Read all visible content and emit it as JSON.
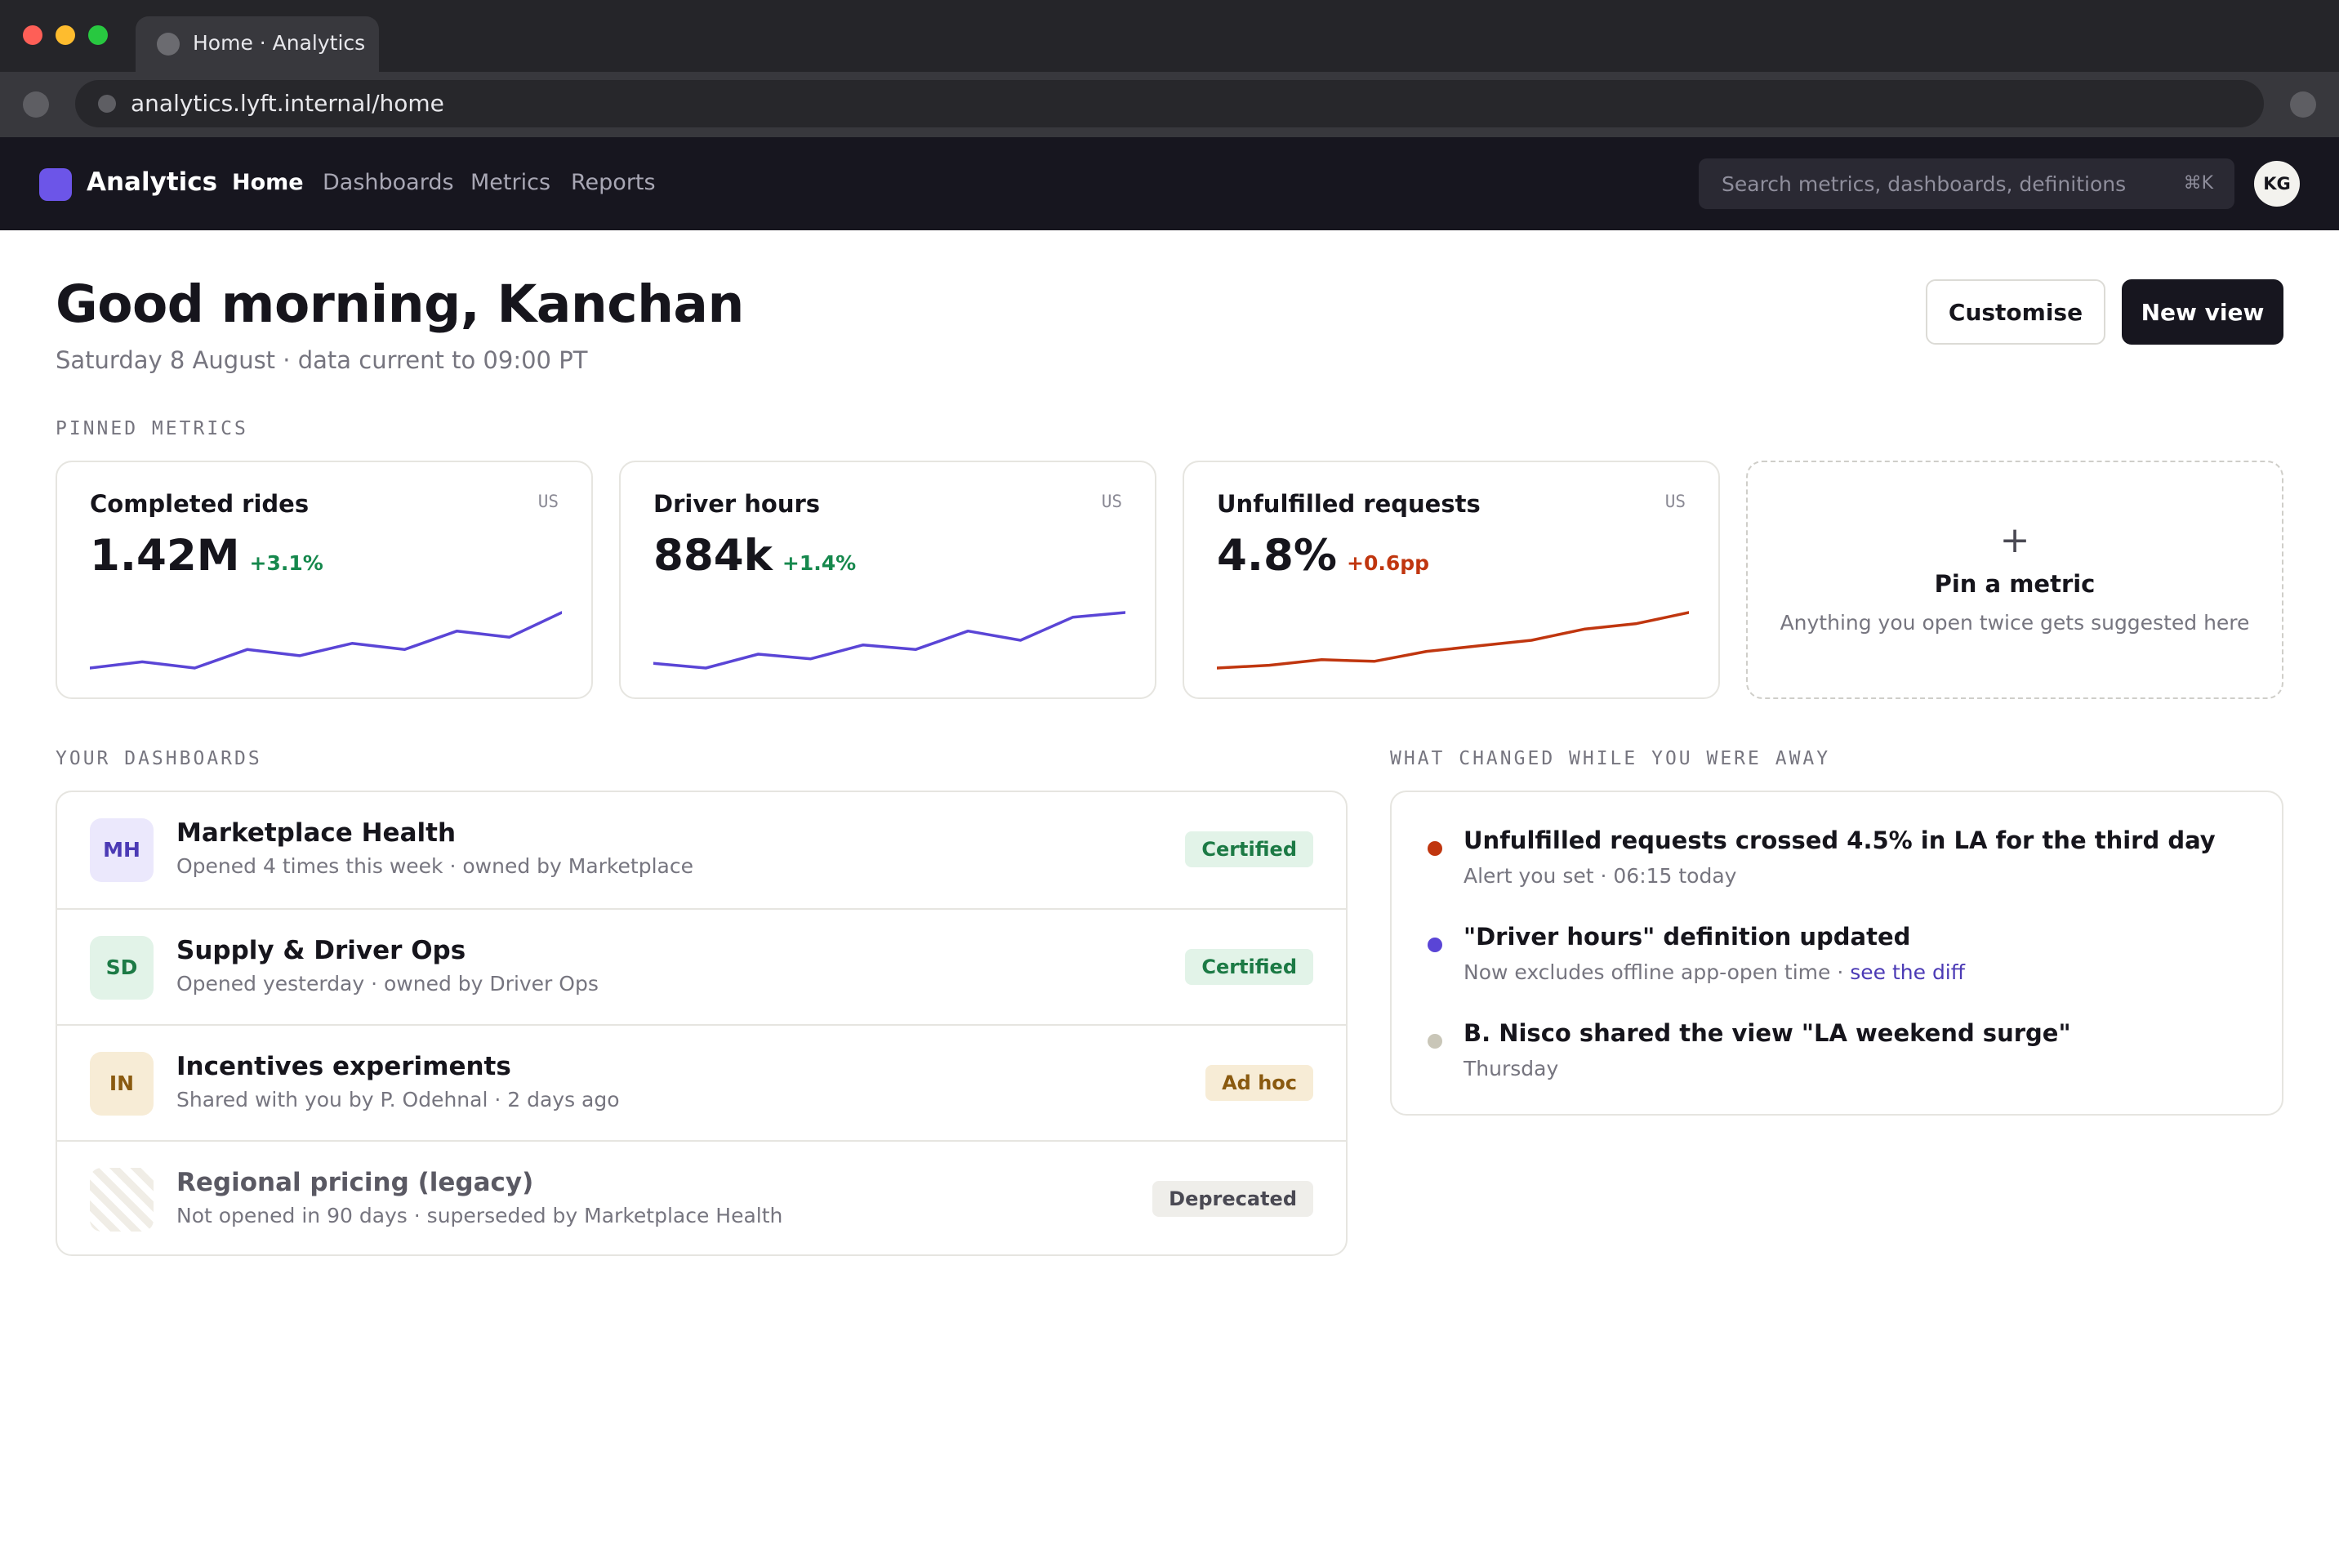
{
  "browser": {
    "tab_title": "Home · Analytics",
    "url": "analytics.lyft.internal/home"
  },
  "app": {
    "brand": "Analytics",
    "nav": [
      {
        "label": "Home",
        "active": true
      },
      {
        "label": "Dashboards",
        "active": false
      },
      {
        "label": "Metrics",
        "active": false
      },
      {
        "label": "Reports",
        "active": false
      }
    ],
    "search": {
      "placeholder": "Search metrics, dashboards, definitions",
      "shortcut": "⌘K"
    },
    "avatar_initials": "KG"
  },
  "page": {
    "greeting": "Good morning, Kanchan",
    "subline": "Saturday 8 August · data current to 09:00 PT",
    "customise_label": "Customise",
    "new_view_label": "New view"
  },
  "pinned": {
    "section_label": "PINNED METRICS",
    "metrics": [
      {
        "name": "Completed rides",
        "region": "US",
        "value": "1.42M",
        "delta": "+3.1%",
        "delta_tone": "good",
        "color": "#5a45d6",
        "trend": [
          3,
          4,
          3,
          6,
          5,
          7,
          6,
          9,
          8,
          12
        ]
      },
      {
        "name": "Driver hours",
        "region": "US",
        "value": "884k",
        "delta": "+1.4%",
        "delta_tone": "good",
        "color": "#5a45d6",
        "trend": [
          4,
          3.5,
          5,
          4.5,
          6,
          5.5,
          7.5,
          6.5,
          9,
          9.5
        ]
      },
      {
        "name": "Unfulfilled requests",
        "region": "US",
        "value": "4.8%",
        "delta": "+0.6pp",
        "delta_tone": "bad",
        "color": "#c0360f",
        "trend": [
          2,
          2.5,
          3.5,
          3.2,
          5,
          6,
          7,
          9,
          10,
          12
        ]
      }
    ],
    "pin_card": {
      "plus": "+",
      "title": "Pin a metric",
      "subtitle": "Anything you open twice gets suggested here"
    }
  },
  "dashboards": {
    "section_label": "YOUR DASHBOARDS",
    "items": [
      {
        "initials": "MH",
        "title": "Marketplace Health",
        "meta": "Opened 4 times this week · owned by Marketplace",
        "badge": "Certified"
      },
      {
        "initials": "SD",
        "title": "Supply & Driver Ops",
        "meta": "Opened yesterday · owned by Driver Ops",
        "badge": "Certified"
      },
      {
        "initials": "IN",
        "title": "Incentives experiments",
        "meta": "Shared with you by P. Odehnal · 2 days ago",
        "badge": "Ad hoc"
      },
      {
        "initials": "",
        "title": "Regional pricing (legacy)",
        "meta": "Not opened in 90 days · superseded by Marketplace Health",
        "badge": "Deprecated"
      }
    ]
  },
  "changes": {
    "section_label": "WHAT CHANGED WHILE YOU WERE AWAY",
    "items": [
      {
        "title": "Unfulfilled requests crossed 4.5% in LA for the third day",
        "meta": "Alert you set · 06:15 today",
        "dot_color": "#c0360f"
      },
      {
        "title": "\"Driver hours\" definition updated",
        "meta": "Now excludes offline app-open time · ",
        "link": "see the diff",
        "dot_color": "#5a45d6"
      },
      {
        "title": "B. Nisco shared the view \"LA weekend surge\"",
        "meta": "Thursday",
        "dot_color": "#c9c6b8"
      }
    ]
  }
}
